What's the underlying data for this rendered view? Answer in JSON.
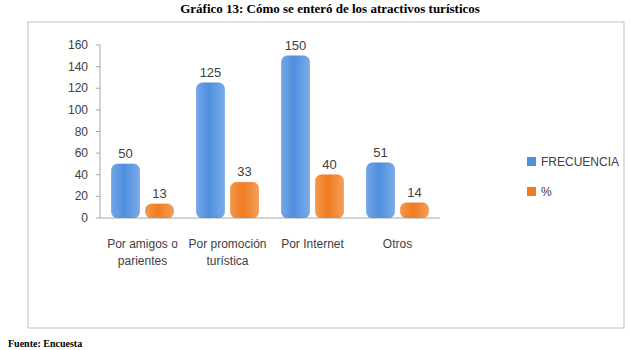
{
  "chart_data": {
    "type": "bar",
    "title": "Gráfico 13: Cómo se enteró de los atractivos turísticos",
    "source": "Fuente: Encuesta",
    "categories": [
      "Por amigos o parientes",
      "Por promoción turística",
      "Por Internet",
      "Otros"
    ],
    "series": [
      {
        "name": "FRECUENCIA",
        "color": "#4f8fe0",
        "values": [
          50,
          125,
          150,
          51
        ]
      },
      {
        "name": "%",
        "color": "#f07c22",
        "values": [
          13,
          33,
          40,
          14
        ]
      }
    ],
    "ylim": [
      0,
      160
    ],
    "yticks": [
      0,
      20,
      40,
      60,
      80,
      100,
      120,
      140,
      160
    ],
    "grid": false,
    "legend": "right",
    "data_labels": true
  }
}
